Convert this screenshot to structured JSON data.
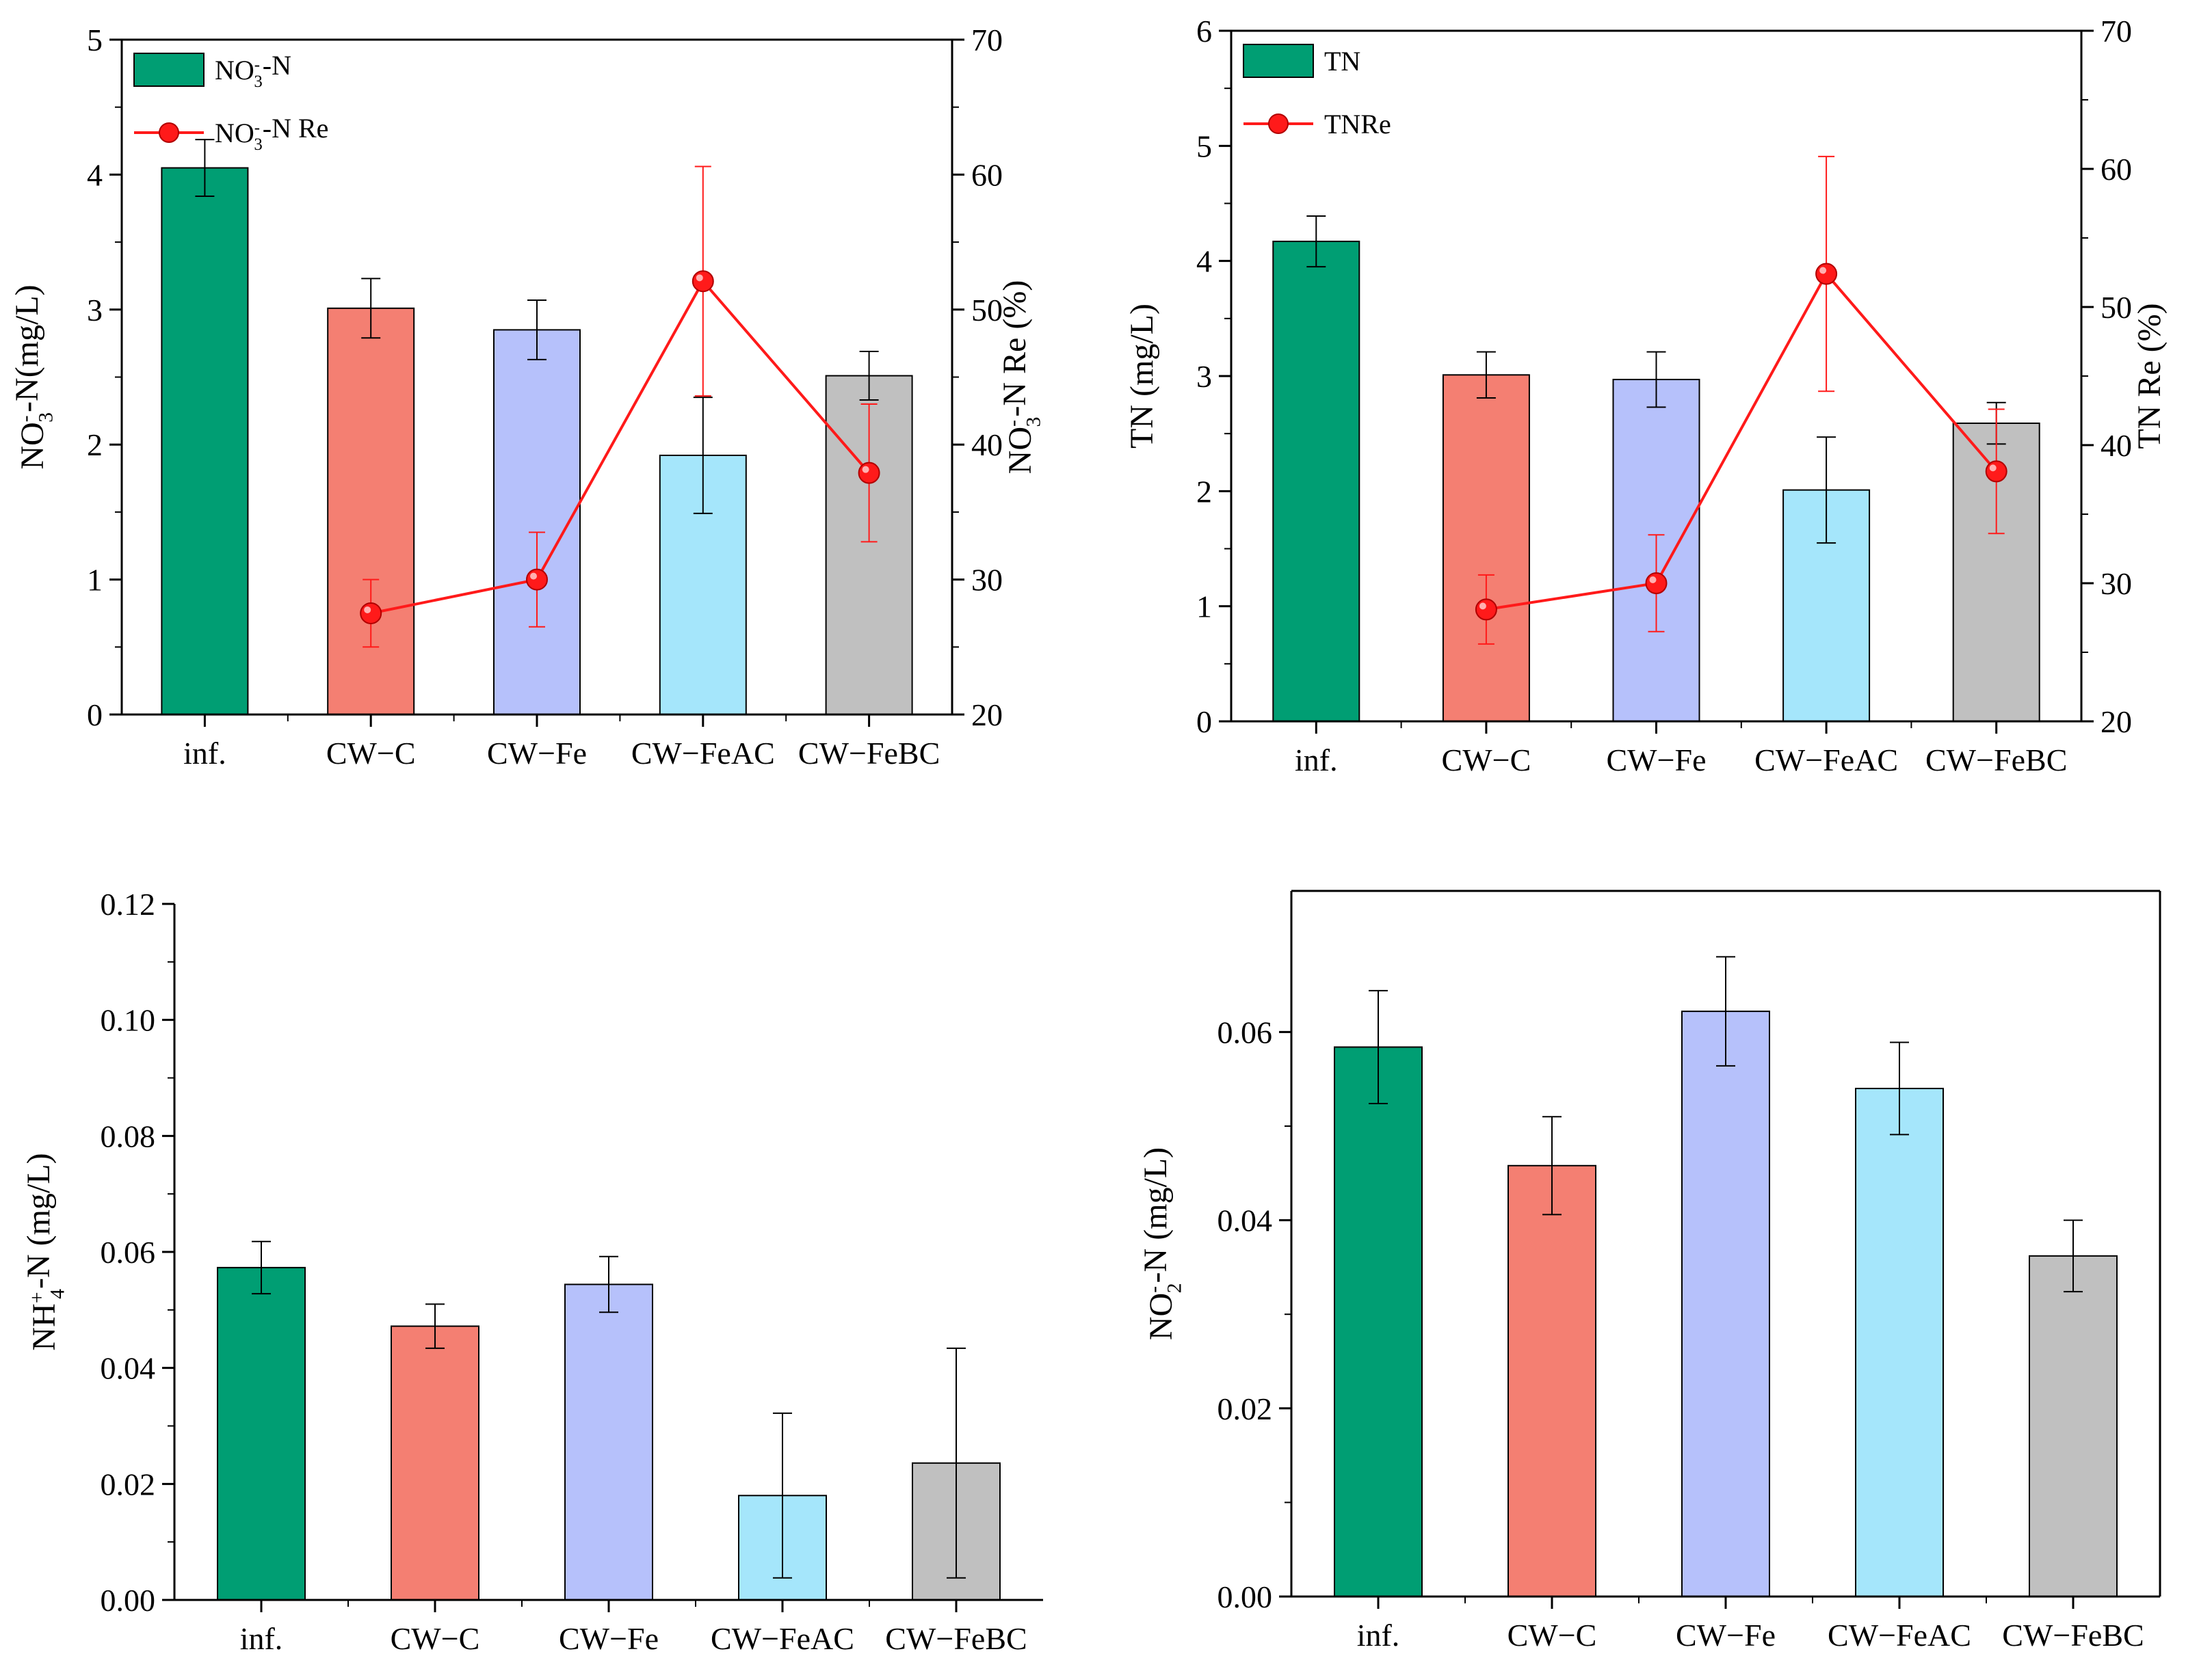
{
  "chart_data": [
    {
      "type": "bar",
      "id": "no3",
      "categories": [
        "inf.",
        "CW−C",
        "CW−Fe",
        "CW−FeAC",
        "CW−FeBC"
      ],
      "bar_colors": [
        "#009e73",
        "#f47f72",
        "#b6c1fb",
        "#a5e6fb",
        "#c0c0c0"
      ],
      "line_color": "#ff1a1a",
      "series": [
        {
          "name": "NO3-N",
          "axis": "left",
          "values": [
            4.05,
            3.01,
            2.85,
            1.92,
            2.51
          ],
          "errors": [
            0.21,
            0.22,
            0.22,
            0.43,
            0.18
          ]
        },
        {
          "name": "NO3-N Re",
          "axis": "right",
          "values": [
            null,
            27.5,
            30.0,
            52.1,
            37.9
          ],
          "errors": [
            null,
            2.5,
            3.5,
            8.5,
            5.1
          ]
        }
      ],
      "ylabel": {
        "main": "NO",
        "sub": "3",
        "sup": "-",
        "rest": "-N(mg/L)"
      },
      "y2label": {
        "main": "NO",
        "sub": "3",
        "sup": "-",
        "rest": "-N Re (%)"
      },
      "ylim": [
        0,
        5
      ],
      "yticks": [
        "0",
        "1",
        "2",
        "3",
        "4",
        "5"
      ],
      "y2lim": [
        20,
        70
      ],
      "y2ticks": [
        "20",
        "30",
        "40",
        "50",
        "60",
        "70"
      ],
      "legend": [
        {
          "kind": "bar",
          "main": "NO",
          "sub": "3",
          "sup": "-",
          "rest": "-N"
        },
        {
          "kind": "line",
          "main": "NO",
          "sub": "3",
          "sup": "-",
          "rest": "-N Re"
        }
      ],
      "legend_position": "top-left"
    },
    {
      "type": "bar",
      "id": "tn",
      "categories": [
        "inf.",
        "CW−C",
        "CW−Fe",
        "CW−FeAC",
        "CW−FeBC"
      ],
      "bar_colors": [
        "#009e73",
        "#f47f72",
        "#b6c1fb",
        "#a5e6fb",
        "#c0c0c0"
      ],
      "line_color": "#ff1a1a",
      "series": [
        {
          "name": "TN",
          "axis": "left",
          "values": [
            4.17,
            3.01,
            2.97,
            2.01,
            2.59
          ],
          "errors": [
            0.22,
            0.2,
            0.24,
            0.46,
            0.18
          ]
        },
        {
          "name": "TNRe",
          "axis": "right",
          "values": [
            null,
            28.1,
            30.0,
            52.4,
            38.1
          ],
          "errors": [
            null,
            2.5,
            3.5,
            8.5,
            4.5
          ]
        }
      ],
      "ylabel": {
        "main": "TN (mg/L)"
      },
      "y2label": {
        "main": "TN Re (%)"
      },
      "ylim": [
        0,
        6
      ],
      "yticks": [
        "0",
        "1",
        "2",
        "3",
        "4",
        "5",
        "6"
      ],
      "y2lim": [
        20,
        70
      ],
      "y2ticks": [
        "20",
        "30",
        "40",
        "50",
        "60",
        "70"
      ],
      "legend": [
        {
          "kind": "bar",
          "main": "TN"
        },
        {
          "kind": "line",
          "main": "TNRe"
        }
      ],
      "legend_position": "top-left"
    },
    {
      "type": "bar",
      "id": "nh4",
      "categories": [
        "inf.",
        "CW−C",
        "CW−Fe",
        "CW−FeAC",
        "CW−FeBC"
      ],
      "bar_colors": [
        "#009e73",
        "#f47f72",
        "#b6c1fb",
        "#a5e6fb",
        "#c0c0c0"
      ],
      "series": [
        {
          "name": "NH4-N",
          "axis": "left",
          "values": [
            0.0573,
            0.0472,
            0.0544,
            0.018,
            0.0236
          ],
          "errors": [
            0.0045,
            0.0038,
            0.0048,
            0.0142,
            0.0198
          ]
        }
      ],
      "ylabel": {
        "main": "NH",
        "sub": "4",
        "sup": "+",
        "rest": "-N (mg/L)"
      },
      "ylim": [
        0,
        0.12
      ],
      "yticks": [
        "0.00",
        "0.02",
        "0.04",
        "0.06",
        "0.08",
        "0.10",
        "0.12"
      ]
    },
    {
      "type": "bar",
      "id": "no2",
      "categories": [
        "inf.",
        "CW−C",
        "CW−Fe",
        "CW−FeAC",
        "CW−FeBC"
      ],
      "bar_colors": [
        "#009e73",
        "#f47f72",
        "#b6c1fb",
        "#a5e6fb",
        "#c0c0c0"
      ],
      "series": [
        {
          "name": "NO2-N",
          "axis": "left",
          "values": [
            0.0584,
            0.0458,
            0.0622,
            0.054,
            0.0362
          ],
          "errors": [
            0.006,
            0.0052,
            0.0058,
            0.0049,
            0.0038
          ]
        }
      ],
      "ylabel": {
        "main": "NO",
        "sub": "2",
        "sup": "-",
        "rest": "-N (mg/L)"
      },
      "ylim": [
        0,
        0.075
      ],
      "yticks": [
        "0.00",
        "0.02",
        "0.04",
        "0.06"
      ]
    }
  ]
}
